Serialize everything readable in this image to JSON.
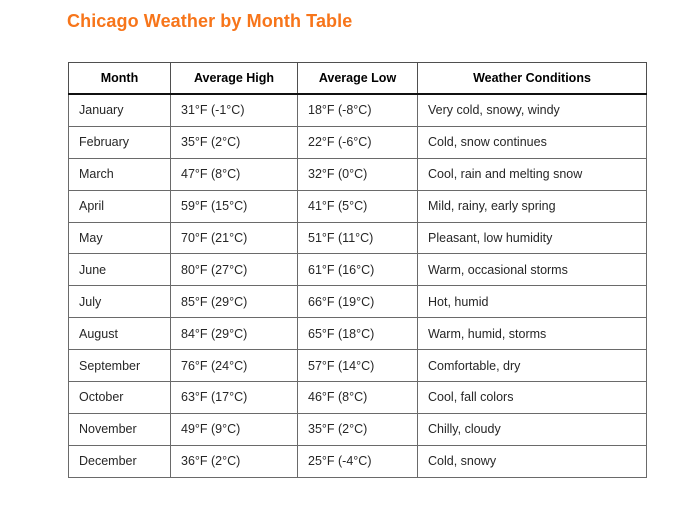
{
  "title": {
    "text": "Chicago Weather by Month Table",
    "color": "#F7751A"
  },
  "colors": {
    "title_orange": "#F7751A",
    "header_rule": "#101010",
    "grid_line": "#6a6a6a",
    "cell_text": "#262626",
    "background": "#ffffff"
  },
  "table": {
    "headers": [
      "Month",
      "Average High",
      "Average Low",
      "Weather Conditions"
    ],
    "rows": [
      {
        "month": "January",
        "avg_high": "31°F (-1°C)",
        "avg_low": "18°F (-8°C)",
        "conditions": "Very cold, snowy, windy"
      },
      {
        "month": "February",
        "avg_high": "35°F (2°C)",
        "avg_low": "22°F (-6°C)",
        "conditions": "Cold, snow continues"
      },
      {
        "month": "March",
        "avg_high": "47°F (8°C)",
        "avg_low": "32°F (0°C)",
        "conditions": "Cool, rain and melting snow"
      },
      {
        "month": "April",
        "avg_high": "59°F (15°C)",
        "avg_low": "41°F (5°C)",
        "conditions": "Mild, rainy, early spring"
      },
      {
        "month": "May",
        "avg_high": "70°F (21°C)",
        "avg_low": "51°F (11°C)",
        "conditions": "Pleasant, low humidity"
      },
      {
        "month": "June",
        "avg_high": "80°F (27°C)",
        "avg_low": "61°F (16°C)",
        "conditions": "Warm, occasional storms"
      },
      {
        "month": "July",
        "avg_high": "85°F (29°C)",
        "avg_low": "66°F (19°C)",
        "conditions": "Hot, humid"
      },
      {
        "month": "August",
        "avg_high": "84°F (29°C)",
        "avg_low": "65°F (18°C)",
        "conditions": "Warm, humid, storms"
      },
      {
        "month": "September",
        "avg_high": "76°F (24°C)",
        "avg_low": "57°F (14°C)",
        "conditions": "Comfortable, dry"
      },
      {
        "month": "October",
        "avg_high": "63°F (17°C)",
        "avg_low": "46°F (8°C)",
        "conditions": "Cool, fall colors"
      },
      {
        "month": "November",
        "avg_high": "49°F (9°C)",
        "avg_low": "35°F (2°C)",
        "conditions": "Chilly, cloudy"
      },
      {
        "month": "December",
        "avg_high": "36°F (2°C)",
        "avg_low": "25°F (-4°C)",
        "conditions": "Cold, snowy"
      }
    ]
  }
}
